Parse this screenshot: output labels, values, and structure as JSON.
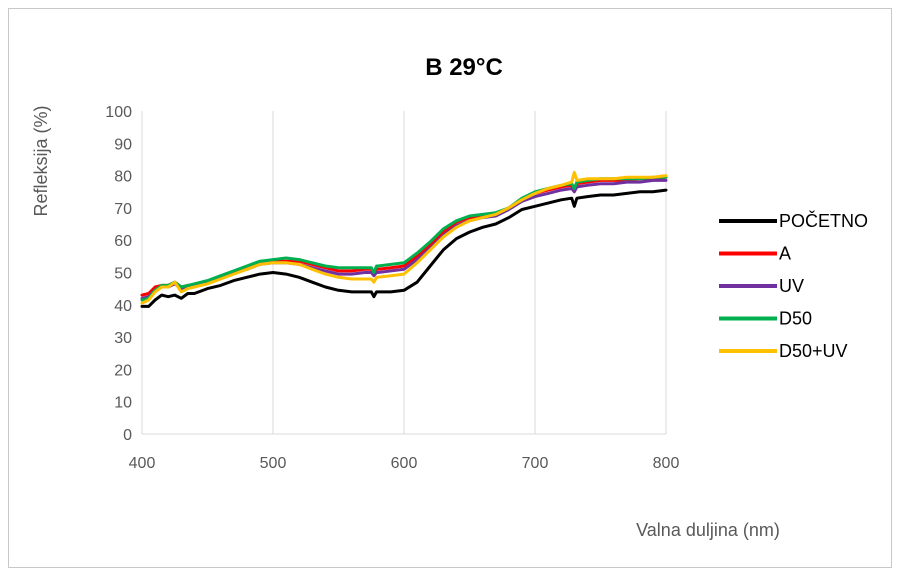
{
  "chart_data": {
    "type": "line",
    "title": "B 29°C",
    "xlabel": "Valna duljina (nm)",
    "ylabel": "Refleksija (%)",
    "xlim": [
      400,
      800
    ],
    "ylim": [
      0,
      100
    ],
    "x_ticks": [
      400,
      500,
      600,
      700,
      800
    ],
    "y_ticks": [
      0,
      10,
      20,
      30,
      40,
      50,
      60,
      70,
      80,
      90,
      100
    ],
    "grid": "vertical",
    "legend_position": "right",
    "x": [
      400,
      405,
      410,
      415,
      420,
      425,
      430,
      435,
      440,
      450,
      460,
      470,
      480,
      490,
      500,
      510,
      520,
      530,
      540,
      550,
      560,
      570,
      575,
      577,
      579,
      580,
      590,
      600,
      610,
      620,
      630,
      640,
      650,
      660,
      670,
      680,
      690,
      700,
      710,
      720,
      728,
      730,
      732,
      740,
      750,
      760,
      770,
      780,
      790,
      800
    ],
    "series": [
      {
        "name": "POČETNO",
        "color": "#000000",
        "values": [
          39.5,
          39.5,
          41.5,
          43,
          42.5,
          43,
          42,
          43.5,
          43.5,
          45,
          46,
          47.5,
          48.5,
          49.5,
          50,
          49.5,
          48.5,
          47,
          45.5,
          44.5,
          44,
          44,
          44,
          42.5,
          44,
          44,
          44,
          44.5,
          47,
          52,
          57,
          60.5,
          62.5,
          64,
          65,
          67,
          69.5,
          70.5,
          71.5,
          72.5,
          73,
          70.5,
          73,
          73.5,
          74,
          74,
          74.5,
          75,
          75,
          75.5
        ]
      },
      {
        "name": "A",
        "color": "#ff0000",
        "values": [
          43,
          43.5,
          45.5,
          46,
          46,
          47,
          45.5,
          46,
          46,
          47,
          48.5,
          50,
          51.5,
          53,
          53.5,
          53.5,
          53.5,
          52.5,
          51.5,
          50.5,
          50.5,
          51,
          51,
          50,
          51,
          51,
          51.5,
          52,
          55,
          58.5,
          62.5,
          65.5,
          67,
          67.5,
          68,
          70,
          72.5,
          74.5,
          75.5,
          76.5,
          77,
          76,
          77.5,
          78,
          78.5,
          78.5,
          78.5,
          79,
          79,
          79.5
        ]
      },
      {
        "name": "UV",
        "color": "#7030a0",
        "values": [
          42,
          42.5,
          44.5,
          45.5,
          45.5,
          46.5,
          45,
          45.5,
          46,
          47,
          48.5,
          50,
          51,
          52.5,
          53,
          53,
          52.5,
          51.5,
          50.5,
          49.5,
          49.5,
          50,
          50,
          49,
          50,
          50,
          50.5,
          51,
          54,
          57.5,
          61.5,
          64.5,
          66,
          67,
          67.5,
          69.5,
          72,
          73.5,
          74.5,
          75.5,
          76,
          75,
          76.5,
          77,
          77.5,
          77.5,
          78,
          78,
          78.5,
          78.5
        ]
      },
      {
        "name": "D50",
        "color": "#00b050",
        "values": [
          41.5,
          42,
          44.5,
          46,
          46,
          47,
          45.5,
          46,
          46.5,
          47.5,
          49,
          50.5,
          52,
          53.5,
          54,
          54.5,
          54,
          53,
          52,
          51.5,
          51.5,
          51.5,
          51.5,
          50,
          52,
          52,
          52.5,
          53,
          56,
          59.5,
          63.5,
          66,
          67.5,
          68,
          68.5,
          70,
          73,
          75,
          76,
          77,
          77.5,
          76,
          78,
          78.5,
          79,
          79,
          79,
          79,
          79.5,
          79.5
        ]
      },
      {
        "name": "D50+UV",
        "color": "#ffc000",
        "values": [
          40.5,
          41.5,
          44,
          45.5,
          45.5,
          47,
          44,
          45,
          45.5,
          46.5,
          48,
          49.5,
          51,
          52.5,
          53,
          53,
          52.5,
          51,
          49.5,
          48.5,
          48,
          48,
          48,
          47,
          48.5,
          48.5,
          49,
          49.5,
          53,
          57,
          61,
          64,
          66,
          67,
          68,
          70,
          72.5,
          74.5,
          76,
          77,
          78,
          81,
          78.5,
          79,
          79,
          79,
          79.5,
          79.5,
          79.5,
          80
        ]
      }
    ]
  }
}
